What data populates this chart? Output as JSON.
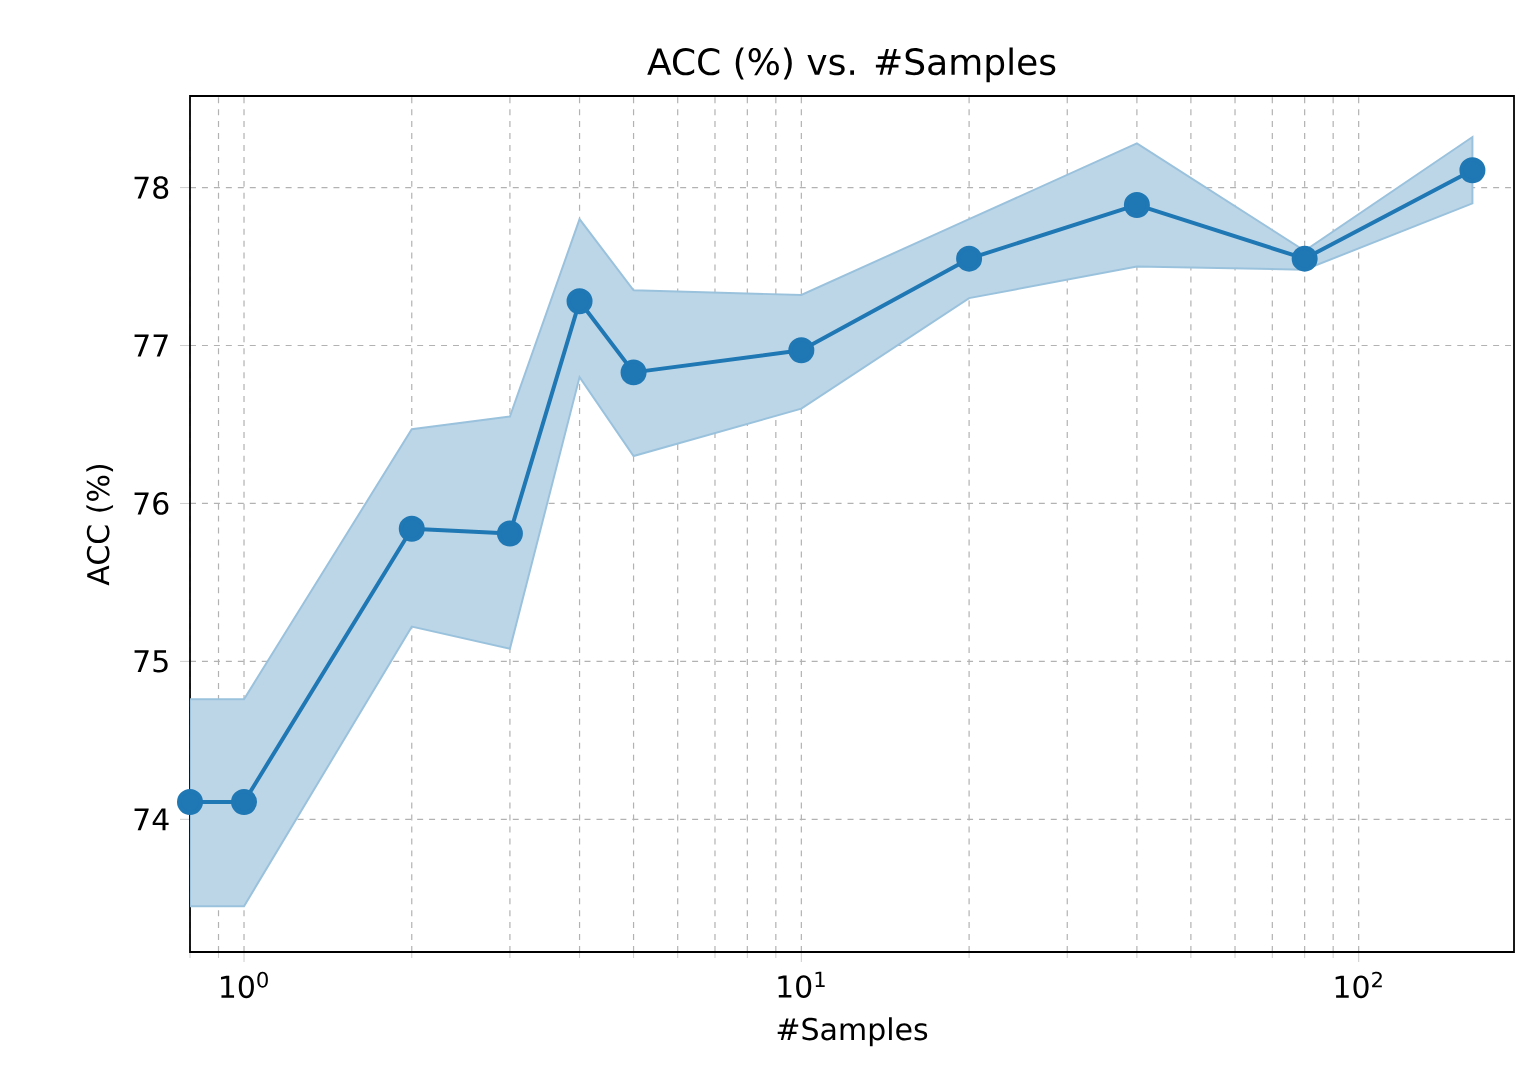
{
  "chart_data": {
    "type": "line",
    "title": "ACC (%) vs. #Samples",
    "xlabel": "#Samples",
    "ylabel": "ACC (%)",
    "log": "x",
    "xlim": [
      0.8,
      190
    ],
    "ylim": [
      73.16,
      78.58
    ],
    "xticks": [
      {
        "value": 1,
        "label": "10$^{0}$"
      },
      {
        "value": 10,
        "label": "10$^{1}$"
      },
      {
        "value": 100,
        "label": "10$^{2}$"
      }
    ],
    "yticks": [
      74,
      75,
      76,
      77,
      78
    ],
    "grid": true,
    "marker": "circle",
    "line_style": "solid",
    "series": [
      {
        "color": "#1f77b4",
        "x": [
          0.8,
          1,
          2,
          3,
          4,
          5,
          10,
          20,
          40,
          80,
          160
        ],
        "values": [
          74.11,
          74.11,
          75.84,
          75.81,
          77.28,
          76.83,
          76.97,
          77.55,
          77.89,
          77.55,
          78.11
        ],
        "lower": [
          73.45,
          73.45,
          75.22,
          75.08,
          76.8,
          76.3,
          76.6,
          77.3,
          77.5,
          77.48,
          77.9
        ],
        "upper": [
          74.76,
          74.76,
          76.47,
          76.55,
          77.8,
          77.35,
          77.32,
          77.8,
          78.28,
          77.6,
          78.32
        ]
      }
    ]
  }
}
